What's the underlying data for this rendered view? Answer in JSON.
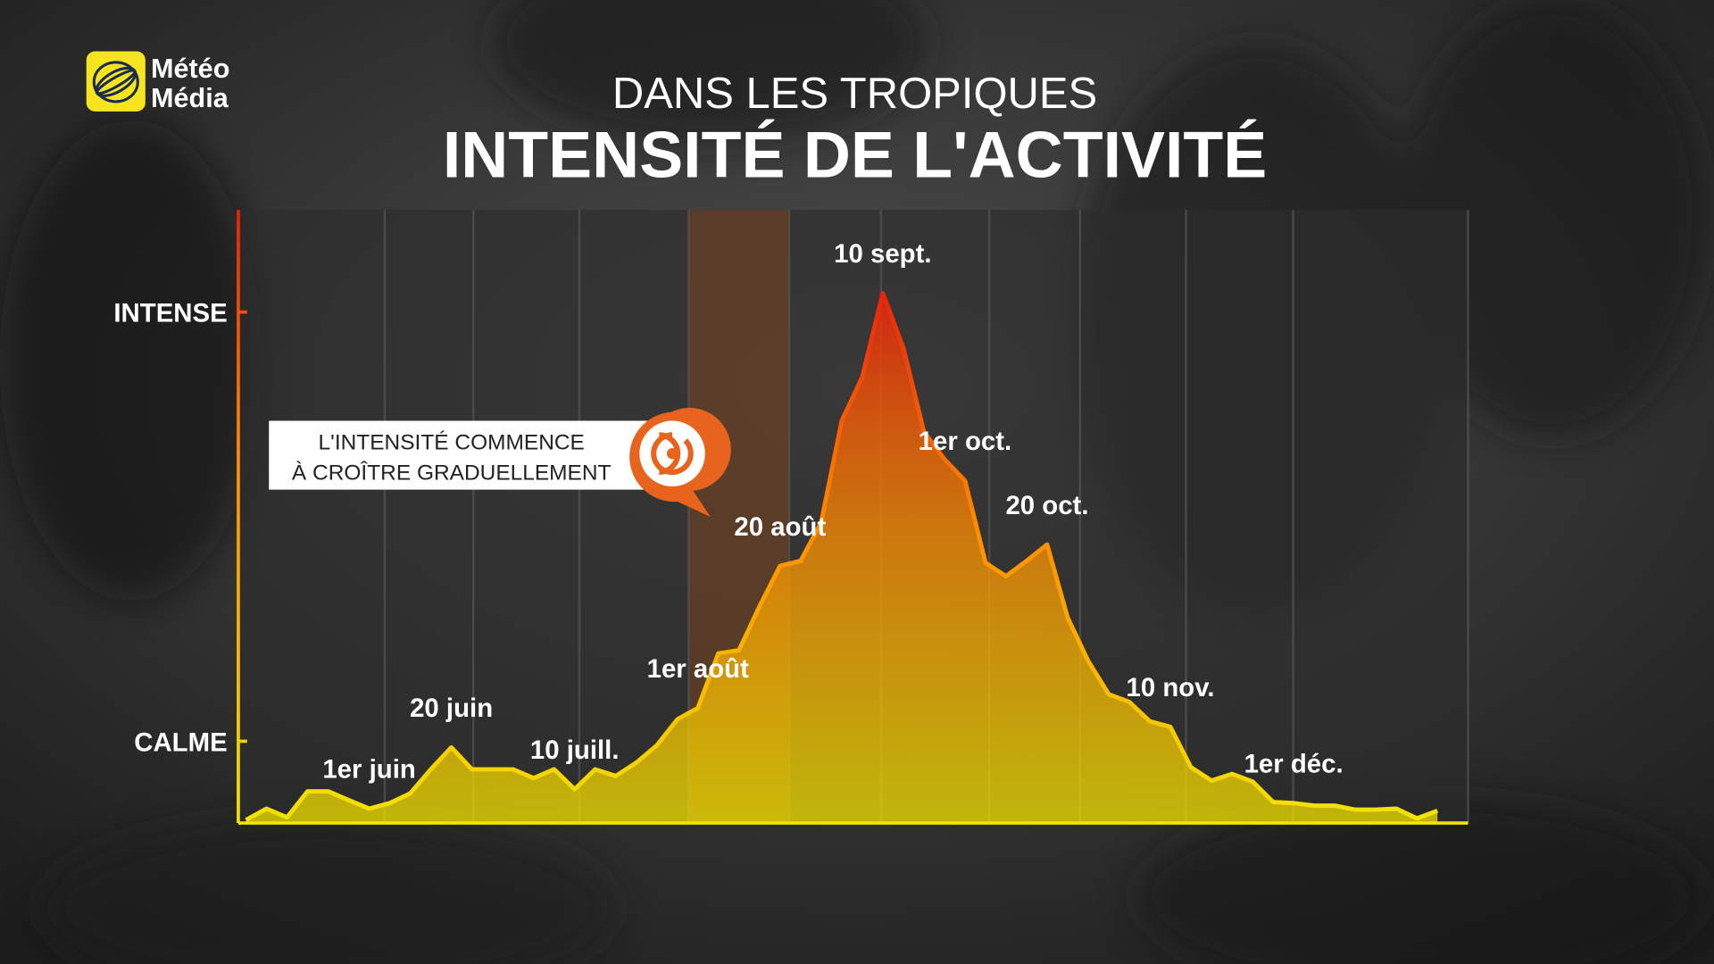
{
  "brand": {
    "line1": "Météo",
    "line2": "Média"
  },
  "chart_data": {
    "type": "area",
    "supertitle": "DANS LES TROPIQUES",
    "title": "INTENSITÉ DE L'ACTIVITÉ",
    "annotation": [
      "L'INTENSITÉ COMMENCE",
      "À CROÎTRE GRADUELLEMENT"
    ],
    "categories": [
      null,
      null,
      null,
      null,
      null,
      null,
      "1er juin",
      null,
      null,
      null,
      "20 juin",
      null,
      null,
      null,
      null,
      null,
      "10 juill.",
      null,
      null,
      null,
      null,
      null,
      "1er août",
      null,
      null,
      null,
      "20 août",
      null,
      null,
      null,
      null,
      "10 sept.",
      null,
      null,
      null,
      "1er oct.",
      null,
      null,
      null,
      "20 oct.",
      null,
      null,
      null,
      null,
      null,
      "10 nov.",
      null,
      null,
      null,
      null,
      null,
      "1er déc.",
      null,
      null,
      null,
      null,
      null,
      null,
      null
    ],
    "values": [
      0.06,
      0.28,
      0.11,
      0.62,
      0.62,
      0.45,
      0.28,
      0.39,
      0.58,
      1.05,
      1.48,
      1.05,
      1.05,
      1.05,
      0.88,
      1.05,
      0.66,
      1.05,
      0.92,
      1.18,
      1.52,
      2.03,
      2.25,
      3.32,
      3.38,
      4.24,
      5.03,
      5.13,
      5.88,
      7.87,
      8.73,
      10.37,
      9.3,
      7.66,
      7.12,
      6.7,
      5.09,
      4.83,
      5.13,
      5.45,
      4.02,
      3.17,
      2.52,
      2.37,
      1.99,
      1.88,
      1.09,
      0.83,
      0.96,
      0.81,
      0.41,
      0.39,
      0.34,
      0.34,
      0.26,
      0.26,
      0.28,
      0.09,
      0.24
    ],
    "ylim": [
      0,
      12
    ],
    "yticks": [
      {
        "value": 10,
        "label": "INTENSE"
      },
      {
        "value": 1.6,
        "label": "CALME"
      }
    ],
    "colors": [
      "#f2e400",
      "#ff8c00",
      "#e8200c"
    ]
  }
}
